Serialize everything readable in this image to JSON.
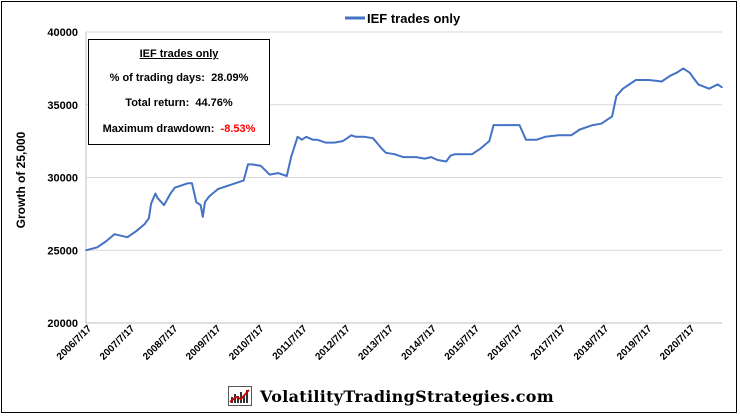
{
  "chart_data": {
    "type": "line",
    "title": "",
    "legend": {
      "position": "top-center",
      "entries": [
        "IEF trades only"
      ]
    },
    "ylabel": "Growth of 25,000",
    "xlabel": "",
    "ylim": [
      20000,
      40000
    ],
    "yticks": [
      "20000",
      "25000",
      "30000",
      "35000",
      "40000"
    ],
    "grid": "horizontal",
    "x_tick_labels": [
      "2006/7/17",
      "2007/7/17",
      "2008/7/17",
      "2009/7/17",
      "2010/7/17",
      "2011/7/17",
      "2012/7/17",
      "2013/7/17",
      "2014/7/17",
      "2015/7/17",
      "2016/7/17",
      "2017/7/17",
      "2018/7/17",
      "2019/7/17",
      "2020/7/17"
    ],
    "series": [
      {
        "name": "IEF trades only",
        "color": "#4472C4",
        "x": [
          2006.54,
          2006.8,
          2007.0,
          2007.2,
          2007.5,
          2007.7,
          2007.9,
          2008.0,
          2008.05,
          2008.15,
          2008.2,
          2008.35,
          2008.5,
          2008.6,
          2008.9,
          2009.0,
          2009.1,
          2009.2,
          2009.25,
          2009.3,
          2009.4,
          2009.6,
          2009.8,
          2010.0,
          2010.2,
          2010.3,
          2010.4,
          2010.6,
          2010.8,
          2011.0,
          2011.2,
          2011.3,
          2011.45,
          2011.55,
          2011.65,
          2011.8,
          2011.9,
          2012.1,
          2012.3,
          2012.5,
          2012.7,
          2012.8,
          2013.0,
          2013.2,
          2013.4,
          2013.5,
          2013.7,
          2013.9,
          2014.2,
          2014.4,
          2014.55,
          2014.7,
          2014.9,
          2015.0,
          2015.1,
          2015.5,
          2015.7,
          2015.9,
          2016.0,
          2016.3,
          2016.6,
          2016.75,
          2017.0,
          2017.2,
          2017.5,
          2017.8,
          2018.0,
          2018.3,
          2018.5,
          2018.75,
          2018.85,
          2019.0,
          2019.3,
          2019.6,
          2019.9,
          2020.1,
          2020.25,
          2020.4,
          2020.55,
          2020.65,
          2020.75,
          2021.0,
          2021.2,
          2021.3
        ],
        "values": [
          25000,
          25200,
          25600,
          26100,
          25900,
          26300,
          26800,
          27200,
          28200,
          28900,
          28600,
          28100,
          28900,
          29300,
          29600,
          29600,
          28300,
          28100,
          27300,
          28300,
          28700,
          29200,
          29400,
          29600,
          29800,
          30900,
          30900,
          30800,
          30200,
          30300,
          30100,
          31400,
          32800,
          32600,
          32800,
          32600,
          32600,
          32400,
          32400,
          32500,
          32900,
          32800,
          32800,
          32700,
          32000,
          31700,
          31600,
          31400,
          31400,
          31300,
          31400,
          31200,
          31100,
          31500,
          31600,
          31600,
          32000,
          32500,
          33600,
          33600,
          33600,
          32600,
          32600,
          32800,
          32900,
          32900,
          33300,
          33600,
          33700,
          34200,
          35600,
          36100,
          36700,
          36700,
          36600,
          37000,
          37200,
          37500,
          37200,
          36800,
          36400,
          36100,
          36400,
          36200
        ]
      }
    ]
  },
  "stats_box": {
    "title": "IEF trades only",
    "row1_label": "% of trading days:",
    "row1_value": "28.09%",
    "row2_label": "Total return:",
    "row2_value": "44.76%",
    "row3_label": "Maximum drawdown:",
    "row3_value": "-8.53%",
    "drawdown_color": "#ff0000"
  },
  "footer": {
    "text": "VolatilityTradingStrategies.com",
    "logo_icon": "chart-logo-icon"
  }
}
